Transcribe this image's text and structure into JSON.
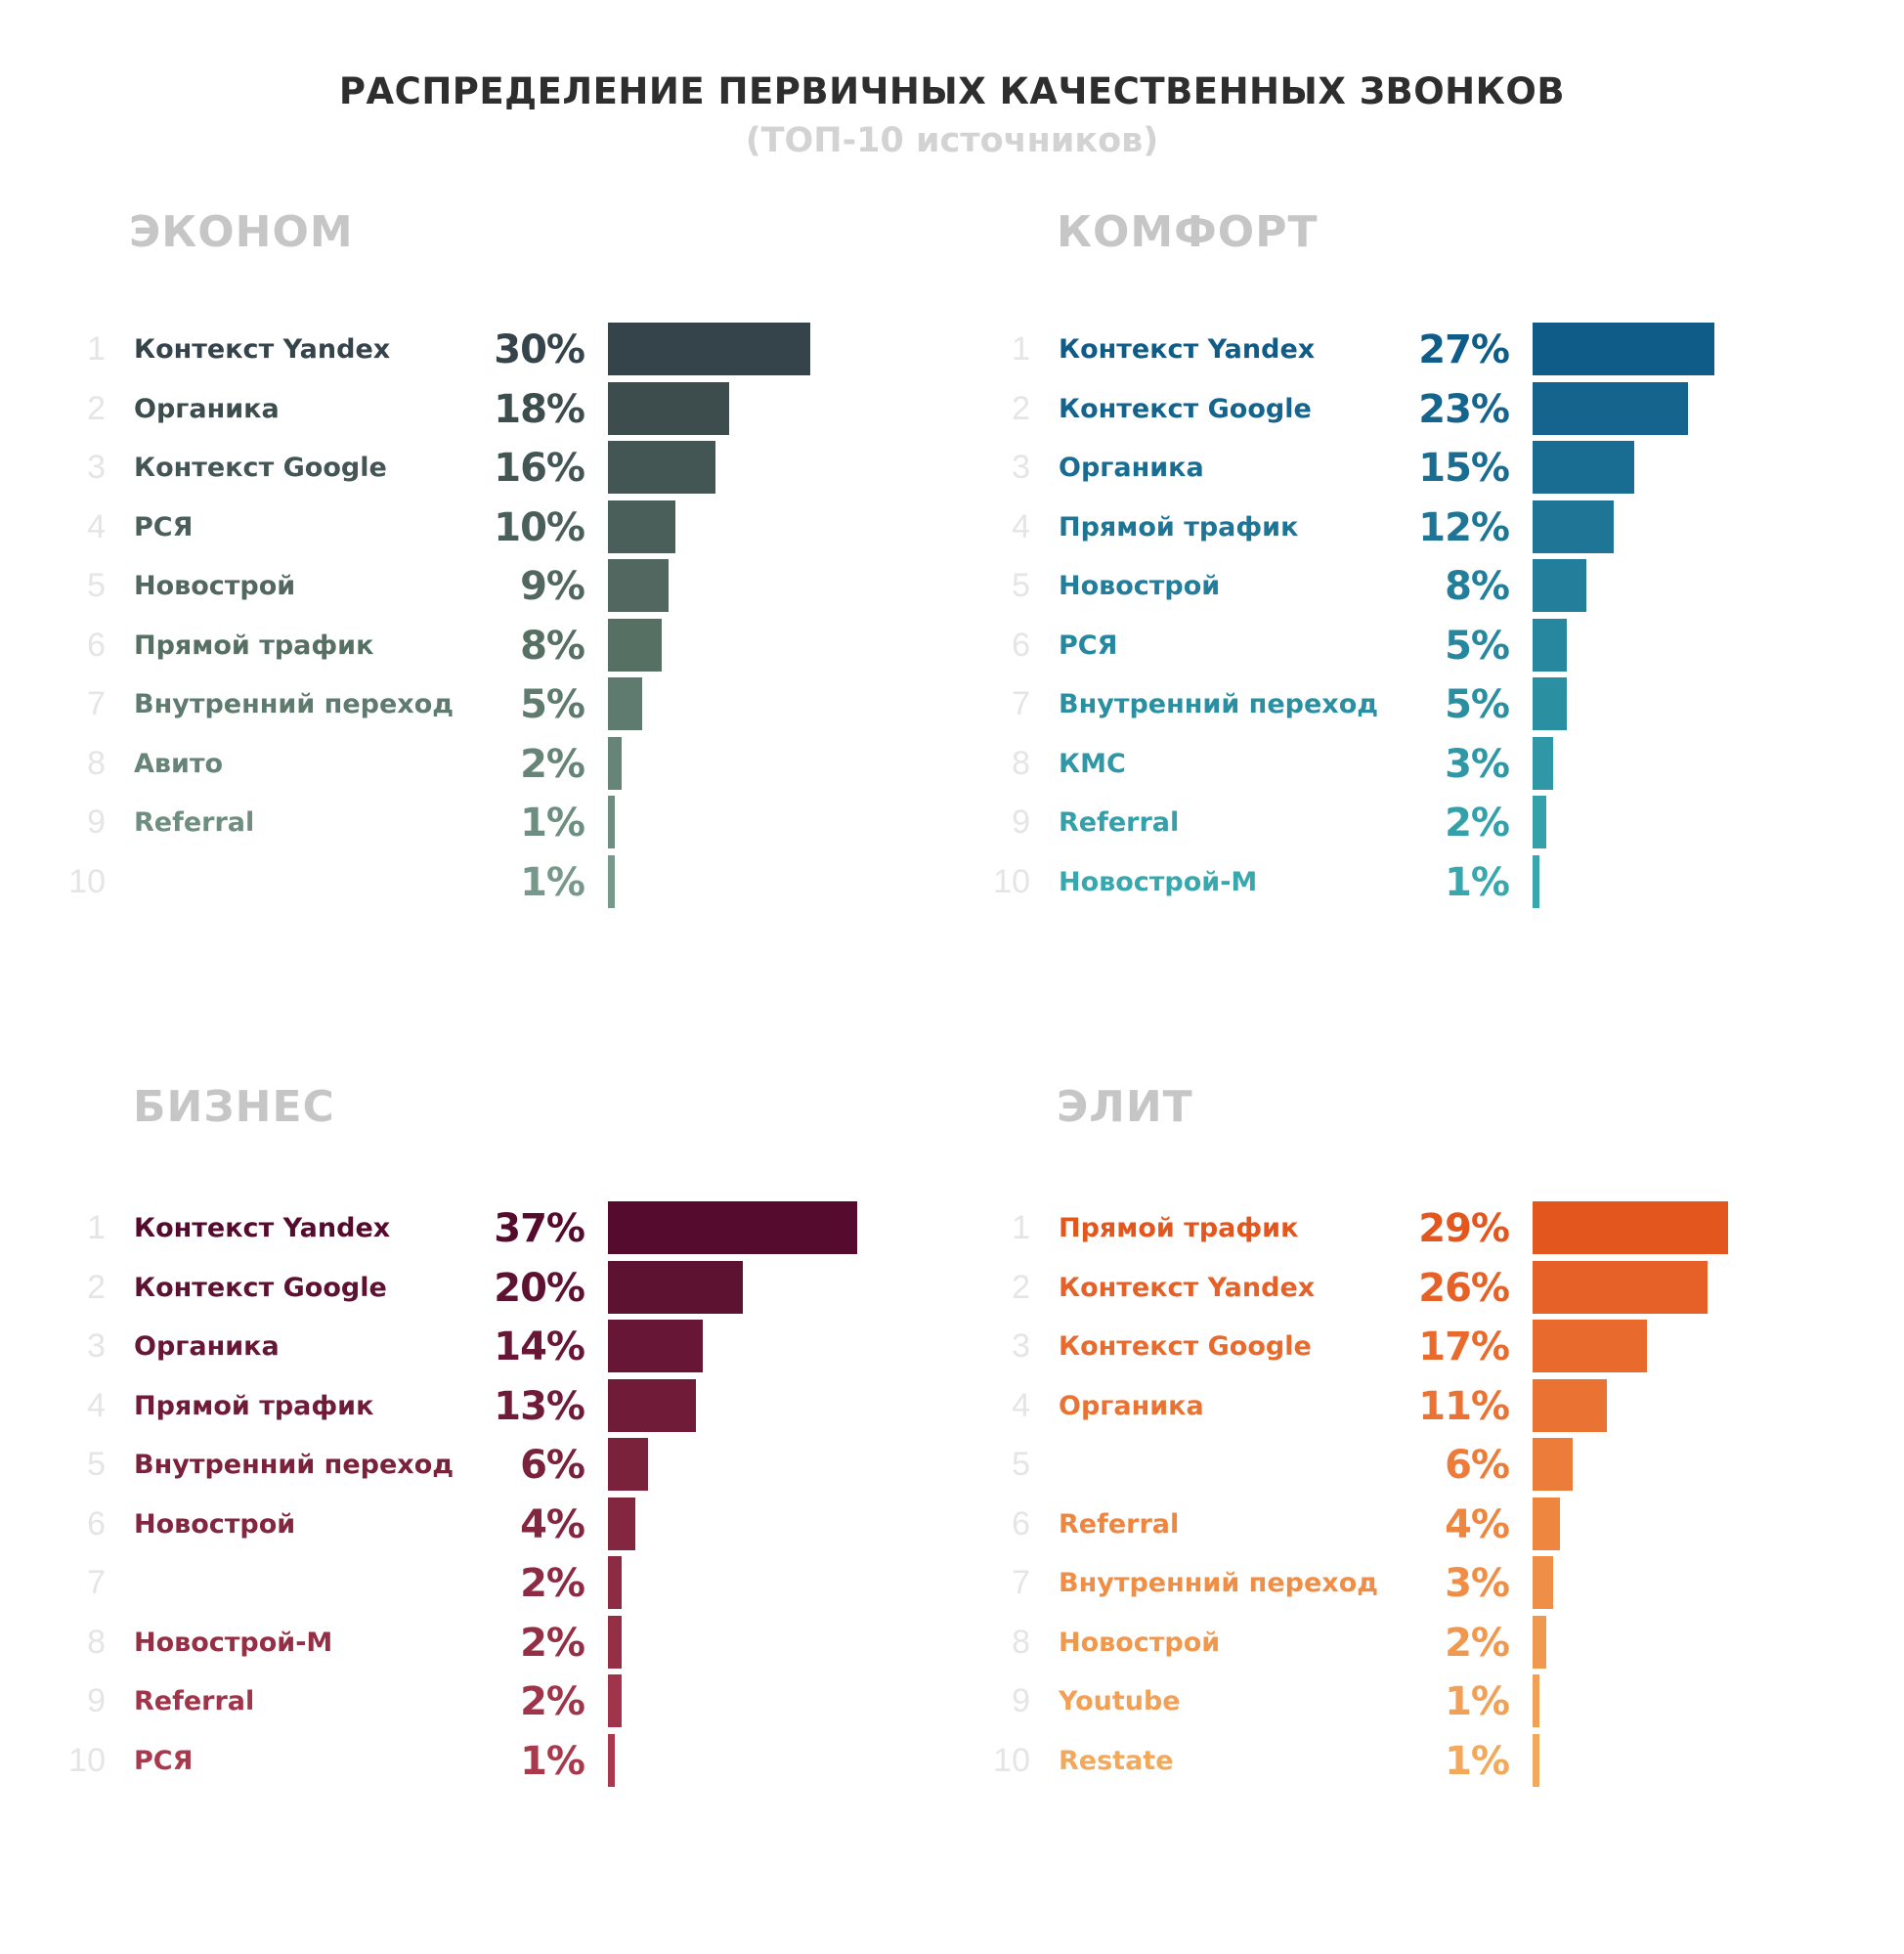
{
  "title": "РАСПРЕДЕЛЕНИЕ ПЕРВИЧНЫХ КАЧЕСТВЕННЫХ ЗВОНКОВ",
  "subtitle": "(ТОП-10 источников)",
  "chart_data": [
    {
      "type": "bar",
      "orientation": "horizontal",
      "title": "ЭКОНОМ",
      "categories": [
        "Контекст Yandex",
        "Органика",
        "Контекст Google",
        "РСЯ",
        "Новострой",
        "Прямой трафик",
        "Внутренний переход",
        "Авито",
        "Referral",
        ""
      ],
      "values": [
        30,
        18,
        16,
        10,
        9,
        8,
        5,
        2,
        1,
        1
      ],
      "value_labels": [
        "30%",
        "18%",
        "16%",
        "10%",
        "9%",
        "8%",
        "5%",
        "2%",
        "1%",
        "1%"
      ],
      "unit": "%",
      "colors": [
        "#35434a",
        "#3d4d4e",
        "#435653",
        "#4b5f5a",
        "#51675f",
        "#577064",
        "#5f7b70",
        "#668477",
        "#6e8e81",
        "#77998b"
      ]
    },
    {
      "type": "bar",
      "orientation": "horizontal",
      "title": "КОМФОРТ",
      "categories": [
        "Контекст Yandex",
        "Контекст Google",
        "Органика",
        "Прямой трафик",
        "Новострой",
        "РСЯ",
        "Внутренний переход",
        "КМС",
        "Referral",
        "Новострой-М"
      ],
      "values": [
        27,
        23,
        15,
        12,
        8,
        5,
        5,
        3,
        2,
        1
      ],
      "value_labels": [
        "27%",
        "23%",
        "15%",
        "12%",
        "8%",
        "5%",
        "5%",
        "3%",
        "2%",
        "1%"
      ],
      "unit": "%",
      "colors": [
        "#0e5c87",
        "#14648d",
        "#1a6d92",
        "#1e7596",
        "#227e9b",
        "#27879e",
        "#2a8fa1",
        "#2f97a6",
        "#33a0aa",
        "#38a8ae"
      ]
    },
    {
      "type": "bar",
      "orientation": "horizontal",
      "title": "БИЗНЕС",
      "categories": [
        "Контекст Yandex",
        "Контекст Google",
        "Органика",
        "Прямой трафик",
        "Внутренний переход",
        "Новострой",
        "",
        "Новострой-М",
        "Referral",
        "РСЯ"
      ],
      "values": [
        37,
        20,
        14,
        13,
        6,
        4,
        2,
        2,
        2,
        1
      ],
      "value_labels": [
        "37%",
        "20%",
        "14%",
        "13%",
        "6%",
        "4%",
        "2%",
        "2%",
        "2%",
        "1%"
      ],
      "unit": "%",
      "colors": [
        "#550b2e",
        "#5e1232",
        "#671735",
        "#701c38",
        "#7a213c",
        "#832640",
        "#8c2b43",
        "#952f46",
        "#9f344a",
        "#a9394d"
      ]
    },
    {
      "type": "bar",
      "orientation": "horizontal",
      "title": "ЭЛИТ",
      "categories": [
        "Прямой трафик",
        "Контекст Yandex",
        "Контекст Google",
        "Органика",
        "",
        "Referral",
        "Внутренний переход",
        "Новострой",
        "Youtube",
        "Restate"
      ],
      "values": [
        29,
        26,
        17,
        11,
        6,
        4,
        3,
        2,
        1,
        1
      ],
      "value_labels": [
        "29%",
        "26%",
        "17%",
        "11%",
        "6%",
        "4%",
        "3%",
        "2%",
        "1%",
        "1%"
      ],
      "unit": "%",
      "colors": [
        "#e3571f",
        "#e66127",
        "#e86a2d",
        "#ea7333",
        "#ec7c3a",
        "#ee8640",
        "#ef8f47",
        "#f0984d",
        "#f1a055",
        "#f2a95c"
      ]
    }
  ],
  "ranks": [
    "1",
    "2",
    "3",
    "4",
    "5",
    "6",
    "7",
    "8",
    "9",
    "10"
  ]
}
